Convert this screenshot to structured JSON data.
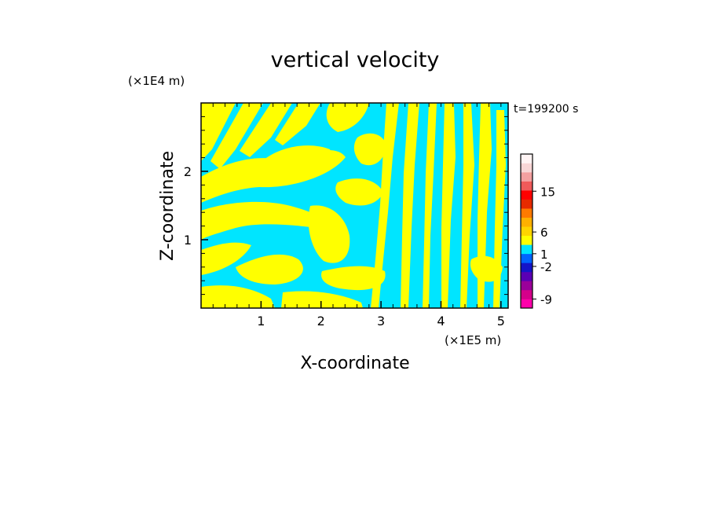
{
  "chart_data": {
    "type": "heatmap",
    "title": "vertical velocity",
    "time_label": "t=199200 s",
    "xlabel": "X-coordinate",
    "ylabel": "Z-coordinate",
    "x_unit": "(×1E5 m)",
    "y_unit": "(×1E4 m)",
    "xlim": [
      0,
      5.12
    ],
    "ylim": [
      0,
      3.0
    ],
    "x_ticks": [
      {
        "value": 1,
        "label": "1"
      },
      {
        "value": 2,
        "label": "2"
      },
      {
        "value": 3,
        "label": "3"
      },
      {
        "value": 4,
        "label": "4"
      },
      {
        "value": 5,
        "label": "5"
      }
    ],
    "y_ticks": [
      {
        "value": 1,
        "label": "1"
      },
      {
        "value": 2,
        "label": "2"
      }
    ],
    "field_colors": {
      "positive": "#ffff00",
      "negative": "#00e5ff"
    },
    "colorbar": {
      "bands": [
        {
          "color": "#ff00aa"
        },
        {
          "color": "#d4008a"
        },
        {
          "color": "#9a009a"
        },
        {
          "color": "#5a00b4"
        },
        {
          "color": "#1414c8"
        },
        {
          "color": "#0064ff"
        },
        {
          "color": "#00e5ff"
        },
        {
          "color": "#ffff00"
        },
        {
          "color": "#ffd400"
        },
        {
          "color": "#ffb000"
        },
        {
          "color": "#ff7a00"
        },
        {
          "color": "#e62a00"
        },
        {
          "color": "#ff0000"
        },
        {
          "color": "#f05a5a"
        },
        {
          "color": "#f4a0a0"
        },
        {
          "color": "#f8d6d6"
        },
        {
          "color": "#fff4f4"
        }
      ],
      "labels": [
        {
          "text": "-9",
          "band": 1.0
        },
        {
          "text": "-2",
          "band": 4.6
        },
        {
          "text": "1",
          "band": 6.0
        },
        {
          "text": "6",
          "band": 8.4
        },
        {
          "text": "15",
          "band": 12.9
        }
      ]
    }
  }
}
